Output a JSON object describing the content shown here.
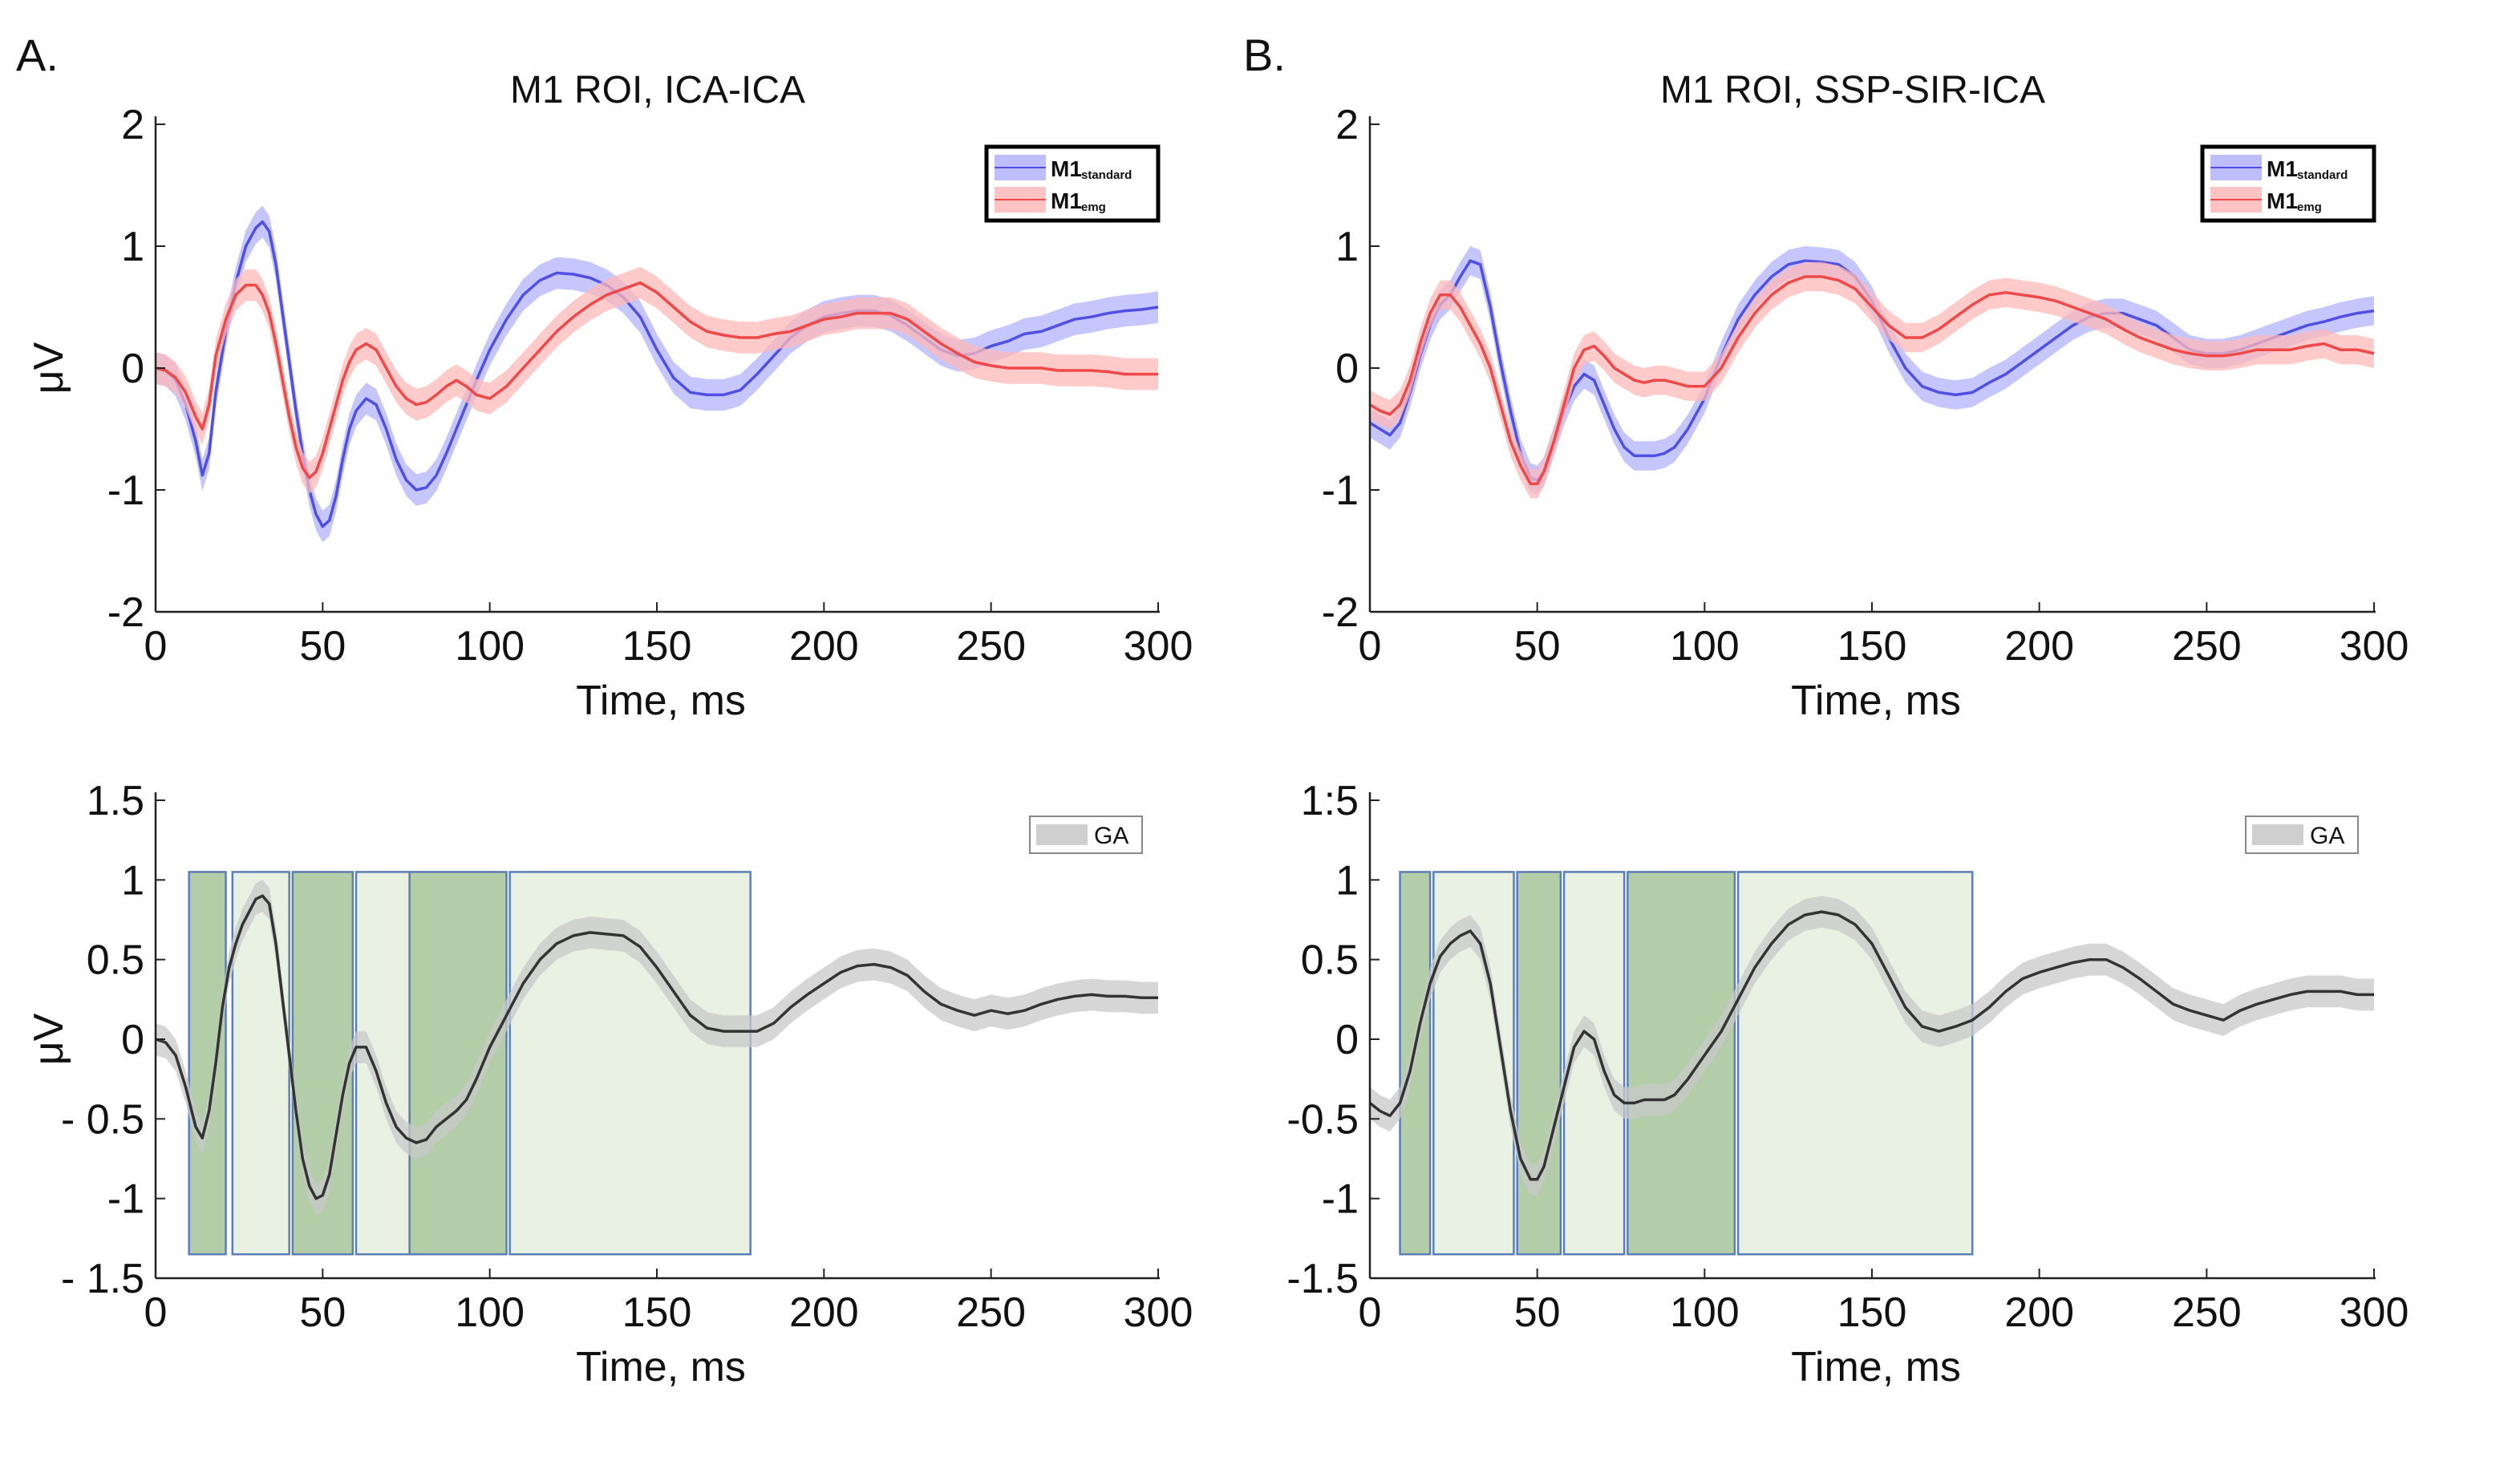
{
  "figure": {
    "panel_letters": [
      "A.",
      "B."
    ]
  },
  "chart_data": [
    {
      "id": "A-top",
      "type": "line",
      "panel_letter": "A.",
      "title": "M1 ROI, ICA-ICA",
      "xlabel": "Time, ms",
      "ylabel": "μV",
      "xlim": [
        0,
        300
      ],
      "ylim": [
        -2,
        2
      ],
      "xticks": [
        0,
        50,
        100,
        150,
        200,
        250,
        300
      ],
      "xtick_labels": [
        "0",
        "50",
        "100",
        "150",
        "200",
        "250",
        "300"
      ],
      "yticks": [
        2,
        1,
        0,
        -1,
        -2
      ],
      "ytick_labels": [
        "2",
        "1",
        "0",
        "-1",
        "-2"
      ],
      "legend_position": "top-right",
      "band_halfwidth": 0.13,
      "x": [
        0,
        3,
        6,
        9,
        12,
        14,
        16,
        18,
        21,
        24,
        27,
        30,
        32,
        34,
        36,
        38,
        40,
        42,
        44,
        46,
        48,
        50,
        52,
        54,
        56,
        58,
        60,
        63,
        66,
        69,
        72,
        75,
        78,
        81,
        84,
        87,
        90,
        93,
        96,
        100,
        105,
        110,
        115,
        120,
        125,
        130,
        135,
        140,
        145,
        150,
        155,
        160,
        165,
        170,
        175,
        180,
        185,
        190,
        195,
        200,
        205,
        210,
        215,
        220,
        225,
        230,
        235,
        240,
        245,
        250,
        255,
        260,
        265,
        270,
        275,
        280,
        285,
        290,
        295,
        300
      ],
      "series": [
        {
          "name": "M1",
          "sub": "standard",
          "color": "#4f4fe6",
          "band": "#b3b3ff",
          "values": [
            0,
            -0.02,
            -0.1,
            -0.3,
            -0.6,
            -0.88,
            -0.7,
            -0.2,
            0.3,
            0.7,
            1.0,
            1.15,
            1.2,
            1.12,
            0.85,
            0.45,
            0.05,
            -0.35,
            -0.7,
            -1.0,
            -1.2,
            -1.3,
            -1.25,
            -1.05,
            -0.75,
            -0.5,
            -0.35,
            -0.25,
            -0.3,
            -0.5,
            -0.75,
            -0.92,
            -1.0,
            -0.98,
            -0.88,
            -0.7,
            -0.5,
            -0.3,
            -0.1,
            0.15,
            0.4,
            0.6,
            0.72,
            0.78,
            0.77,
            0.74,
            0.68,
            0.58,
            0.42,
            0.15,
            -0.08,
            -0.2,
            -0.22,
            -0.22,
            -0.18,
            -0.05,
            0.1,
            0.25,
            0.35,
            0.42,
            0.45,
            0.47,
            0.47,
            0.43,
            0.35,
            0.25,
            0.15,
            0.1,
            0.12,
            0.18,
            0.22,
            0.28,
            0.3,
            0.35,
            0.4,
            0.42,
            0.45,
            0.47,
            0.48,
            0.5
          ]
        },
        {
          "name": "M1",
          "sub": "emg",
          "color": "#f04848",
          "band": "#ffb8b8",
          "values": [
            0,
            -0.02,
            -0.08,
            -0.2,
            -0.4,
            -0.5,
            -0.3,
            0.1,
            0.4,
            0.6,
            0.68,
            0.68,
            0.6,
            0.45,
            0.2,
            -0.1,
            -0.4,
            -0.65,
            -0.82,
            -0.9,
            -0.85,
            -0.7,
            -0.5,
            -0.3,
            -0.1,
            0.05,
            0.15,
            0.2,
            0.15,
            0.0,
            -0.15,
            -0.25,
            -0.3,
            -0.28,
            -0.22,
            -0.15,
            -0.1,
            -0.15,
            -0.22,
            -0.25,
            -0.15,
            0.0,
            0.15,
            0.3,
            0.42,
            0.52,
            0.6,
            0.65,
            0.7,
            0.62,
            0.5,
            0.38,
            0.3,
            0.27,
            0.25,
            0.25,
            0.28,
            0.3,
            0.35,
            0.4,
            0.42,
            0.45,
            0.45,
            0.45,
            0.4,
            0.3,
            0.2,
            0.12,
            0.05,
            0.02,
            0.0,
            0.0,
            0.0,
            -0.02,
            -0.02,
            -0.02,
            -0.03,
            -0.05,
            -0.05,
            -0.05
          ]
        }
      ]
    },
    {
      "id": "B-top",
      "type": "line",
      "panel_letter": "B.",
      "title": "M1 ROI, SSP-SIR-ICA",
      "xlabel": "Time, ms",
      "ylabel": "",
      "xlim": [
        0,
        300
      ],
      "ylim": [
        -2,
        2
      ],
      "xticks": [
        0,
        50,
        100,
        150,
        200,
        250,
        300
      ],
      "xtick_labels": [
        "0",
        "50",
        "100",
        "150",
        "200",
        "250",
        "300"
      ],
      "yticks": [
        2,
        1,
        0,
        -1,
        -2
      ],
      "ytick_labels": [
        "2",
        "1",
        "0",
        "-1",
        "-2"
      ],
      "legend_position": "top-right",
      "band_halfwidth": 0.12,
      "x": [
        0,
        3,
        6,
        9,
        12,
        15,
        18,
        21,
        24,
        27,
        30,
        33,
        36,
        39,
        42,
        45,
        48,
        50,
        52,
        55,
        58,
        61,
        64,
        67,
        70,
        73,
        76,
        79,
        82,
        85,
        88,
        91,
        95,
        100,
        105,
        110,
        115,
        120,
        125,
        130,
        135,
        140,
        145,
        150,
        155,
        160,
        165,
        170,
        175,
        180,
        185,
        190,
        195,
        200,
        205,
        210,
        215,
        220,
        225,
        230,
        235,
        240,
        245,
        250,
        255,
        260,
        265,
        270,
        275,
        280,
        285,
        290,
        295,
        300
      ],
      "series": [
        {
          "name": "M1",
          "sub": "standard",
          "color": "#4f4fe6",
          "band": "#b3b3ff",
          "values": [
            -0.45,
            -0.5,
            -0.55,
            -0.45,
            -0.2,
            0.1,
            0.35,
            0.52,
            0.6,
            0.75,
            0.88,
            0.85,
            0.5,
            0.05,
            -0.35,
            -0.7,
            -0.9,
            -0.92,
            -0.85,
            -0.6,
            -0.35,
            -0.15,
            -0.05,
            -0.1,
            -0.3,
            -0.5,
            -0.65,
            -0.72,
            -0.72,
            -0.72,
            -0.7,
            -0.65,
            -0.5,
            -0.25,
            0.1,
            0.4,
            0.6,
            0.75,
            0.85,
            0.88,
            0.87,
            0.85,
            0.75,
            0.55,
            0.25,
            0.0,
            -0.15,
            -0.2,
            -0.22,
            -0.2,
            -0.12,
            -0.05,
            0.05,
            0.15,
            0.25,
            0.35,
            0.42,
            0.45,
            0.45,
            0.4,
            0.35,
            0.25,
            0.15,
            0.12,
            0.12,
            0.15,
            0.2,
            0.25,
            0.3,
            0.35,
            0.38,
            0.42,
            0.45,
            0.47
          ]
        },
        {
          "name": "M1",
          "sub": "emg",
          "color": "#f04848",
          "band": "#ffb8b8",
          "values": [
            -0.3,
            -0.35,
            -0.38,
            -0.3,
            -0.1,
            0.2,
            0.45,
            0.6,
            0.6,
            0.5,
            0.35,
            0.2,
            0.0,
            -0.3,
            -0.6,
            -0.8,
            -0.95,
            -0.95,
            -0.85,
            -0.6,
            -0.3,
            0.0,
            0.15,
            0.18,
            0.1,
            0.0,
            -0.05,
            -0.1,
            -0.12,
            -0.1,
            -0.1,
            -0.12,
            -0.15,
            -0.15,
            0.0,
            0.25,
            0.45,
            0.6,
            0.7,
            0.75,
            0.75,
            0.72,
            0.65,
            0.5,
            0.35,
            0.25,
            0.25,
            0.32,
            0.42,
            0.52,
            0.6,
            0.62,
            0.6,
            0.58,
            0.55,
            0.5,
            0.45,
            0.4,
            0.32,
            0.25,
            0.2,
            0.15,
            0.12,
            0.1,
            0.1,
            0.12,
            0.15,
            0.15,
            0.15,
            0.18,
            0.2,
            0.15,
            0.15,
            0.12
          ]
        }
      ]
    },
    {
      "id": "A-bottom",
      "type": "line",
      "panel_letter": "",
      "title": "",
      "xlabel": "Time, ms",
      "ylabel": "μV",
      "xlim": [
        0,
        300
      ],
      "ylim": [
        -1.5,
        1.5
      ],
      "xticks": [
        0,
        50,
        100,
        150,
        200,
        250,
        300
      ],
      "xtick_labels": [
        "0",
        "50",
        "100",
        "150",
        "200",
        "250",
        "300"
      ],
      "yticks": [
        1.5,
        1,
        0.5,
        0,
        -0.5,
        -1,
        -1.5
      ],
      "ytick_labels": [
        "1.5",
        "1",
        "0.5",
        "0",
        "- 0.5",
        "-1",
        "- 1.5"
      ],
      "legend_position": "top-right",
      "band_halfwidth": 0.1,
      "windows": [
        {
          "start": 10,
          "end": 21,
          "shade": "dark"
        },
        {
          "start": 23,
          "end": 40,
          "shade": "light"
        },
        {
          "start": 41,
          "end": 59,
          "shade": "dark"
        },
        {
          "start": 60,
          "end": 76,
          "shade": "light"
        },
        {
          "start": 76,
          "end": 105,
          "shade": "dark"
        },
        {
          "start": 106,
          "end": 178,
          "shade": "light"
        }
      ],
      "window_ylim": [
        -1.35,
        1.05
      ],
      "x": [
        0,
        3,
        6,
        9,
        12,
        14,
        16,
        18,
        20,
        22,
        24,
        26,
        28,
        30,
        32,
        34,
        36,
        38,
        40,
        42,
        44,
        46,
        48,
        50,
        52,
        54,
        56,
        58,
        60,
        63,
        66,
        69,
        72,
        75,
        78,
        81,
        84,
        87,
        90,
        93,
        96,
        100,
        105,
        110,
        115,
        120,
        125,
        130,
        135,
        140,
        145,
        150,
        155,
        160,
        165,
        170,
        175,
        180,
        185,
        190,
        195,
        200,
        205,
        210,
        215,
        220,
        225,
        230,
        235,
        240,
        245,
        250,
        255,
        260,
        265,
        270,
        275,
        280,
        285,
        290,
        295,
        300
      ],
      "series": [
        {
          "name": "GA",
          "color": "#333333",
          "band": "#c8c8c8",
          "values": [
            0,
            -0.02,
            -0.1,
            -0.3,
            -0.55,
            -0.62,
            -0.45,
            -0.15,
            0.2,
            0.45,
            0.6,
            0.72,
            0.8,
            0.88,
            0.9,
            0.85,
            0.6,
            0.25,
            -0.1,
            -0.45,
            -0.75,
            -0.92,
            -1.0,
            -0.98,
            -0.85,
            -0.6,
            -0.35,
            -0.15,
            -0.05,
            -0.05,
            -0.2,
            -0.4,
            -0.55,
            -0.62,
            -0.65,
            -0.63,
            -0.55,
            -0.5,
            -0.45,
            -0.38,
            -0.25,
            -0.05,
            0.15,
            0.35,
            0.5,
            0.6,
            0.65,
            0.67,
            0.66,
            0.65,
            0.58,
            0.45,
            0.3,
            0.15,
            0.07,
            0.05,
            0.05,
            0.05,
            0.1,
            0.2,
            0.28,
            0.35,
            0.42,
            0.46,
            0.47,
            0.45,
            0.4,
            0.3,
            0.22,
            0.18,
            0.15,
            0.18,
            0.16,
            0.18,
            0.22,
            0.25,
            0.27,
            0.28,
            0.27,
            0.27,
            0.26,
            0.26
          ]
        }
      ]
    },
    {
      "id": "B-bottom",
      "type": "line",
      "panel_letter": "",
      "title": "",
      "xlabel": "Time, ms",
      "ylabel": "",
      "xlim": [
        0,
        300
      ],
      "ylim": [
        -1.5,
        1.5
      ],
      "xticks": [
        0,
        50,
        100,
        150,
        200,
        250,
        300
      ],
      "xtick_labels": [
        "0",
        "50",
        "100",
        "150",
        "200",
        "250",
        "300"
      ],
      "yticks": [
        1.5,
        1,
        0.5,
        0,
        -0.5,
        -1,
        -1.5
      ],
      "ytick_labels": [
        "1:5",
        "1",
        "0.5",
        "0",
        "-0.5",
        "-1",
        "-1.5"
      ],
      "legend_position": "top-right",
      "band_halfwidth": 0.1,
      "windows": [
        {
          "start": 9,
          "end": 18,
          "shade": "dark"
        },
        {
          "start": 19,
          "end": 43,
          "shade": "light"
        },
        {
          "start": 44,
          "end": 57,
          "shade": "dark"
        },
        {
          "start": 58,
          "end": 76,
          "shade": "light"
        },
        {
          "start": 77,
          "end": 109,
          "shade": "dark"
        },
        {
          "start": 110,
          "end": 180,
          "shade": "light"
        }
      ],
      "window_ylim": [
        -1.35,
        1.05
      ],
      "x": [
        0,
        3,
        6,
        9,
        12,
        15,
        18,
        21,
        24,
        27,
        30,
        33,
        36,
        39,
        42,
        45,
        48,
        50,
        52,
        55,
        58,
        61,
        64,
        67,
        70,
        73,
        76,
        79,
        82,
        85,
        88,
        91,
        95,
        100,
        105,
        110,
        115,
        120,
        125,
        130,
        135,
        140,
        145,
        150,
        155,
        160,
        165,
        170,
        175,
        180,
        185,
        190,
        195,
        200,
        205,
        210,
        215,
        220,
        225,
        230,
        235,
        240,
        245,
        250,
        255,
        260,
        265,
        270,
        275,
        280,
        285,
        290,
        295,
        300
      ],
      "series": [
        {
          "name": "GA",
          "color": "#333333",
          "band": "#c8c8c8",
          "values": [
            -0.4,
            -0.45,
            -0.48,
            -0.4,
            -0.2,
            0.1,
            0.35,
            0.52,
            0.6,
            0.65,
            0.68,
            0.6,
            0.35,
            -0.05,
            -0.45,
            -0.75,
            -0.88,
            -0.88,
            -0.8,
            -0.55,
            -0.3,
            -0.05,
            0.05,
            0.0,
            -0.2,
            -0.35,
            -0.4,
            -0.4,
            -0.38,
            -0.38,
            -0.38,
            -0.35,
            -0.25,
            -0.1,
            0.05,
            0.25,
            0.45,
            0.6,
            0.72,
            0.78,
            0.8,
            0.78,
            0.72,
            0.6,
            0.4,
            0.2,
            0.08,
            0.05,
            0.08,
            0.12,
            0.2,
            0.3,
            0.38,
            0.42,
            0.45,
            0.48,
            0.5,
            0.5,
            0.45,
            0.38,
            0.3,
            0.22,
            0.18,
            0.15,
            0.12,
            0.18,
            0.22,
            0.25,
            0.28,
            0.3,
            0.3,
            0.3,
            0.28,
            0.28
          ]
        }
      ]
    }
  ]
}
